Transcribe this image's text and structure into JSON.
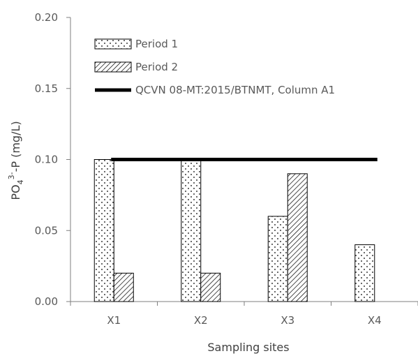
{
  "chart_data": {
    "type": "bar",
    "categories": [
      "X1",
      "X2",
      "X3",
      "X4"
    ],
    "series": [
      {
        "name": "Period 1",
        "values": [
          0.1,
          0.1,
          0.06,
          0.04
        ],
        "pattern": "dotted"
      },
      {
        "name": "Period 2",
        "values": [
          0.02,
          0.02,
          0.09,
          null
        ],
        "pattern": "diagonal-hatch"
      }
    ],
    "reference_line": {
      "name": "QCVN 08-MT:2015/BTNMT, Column A1",
      "value": 0.1,
      "color": "#000000"
    },
    "xlabel": "Sampling sites",
    "ylabel": {
      "base": "PO",
      "sub1": "4",
      "sup": "3-",
      "tail": "-P (mg/L)"
    },
    "ylim": [
      0,
      0.2
    ],
    "yticks": [
      "0.00",
      "0.05",
      "0.10",
      "0.15",
      "0.20"
    ],
    "grid": false,
    "legend_position": "top-left"
  }
}
